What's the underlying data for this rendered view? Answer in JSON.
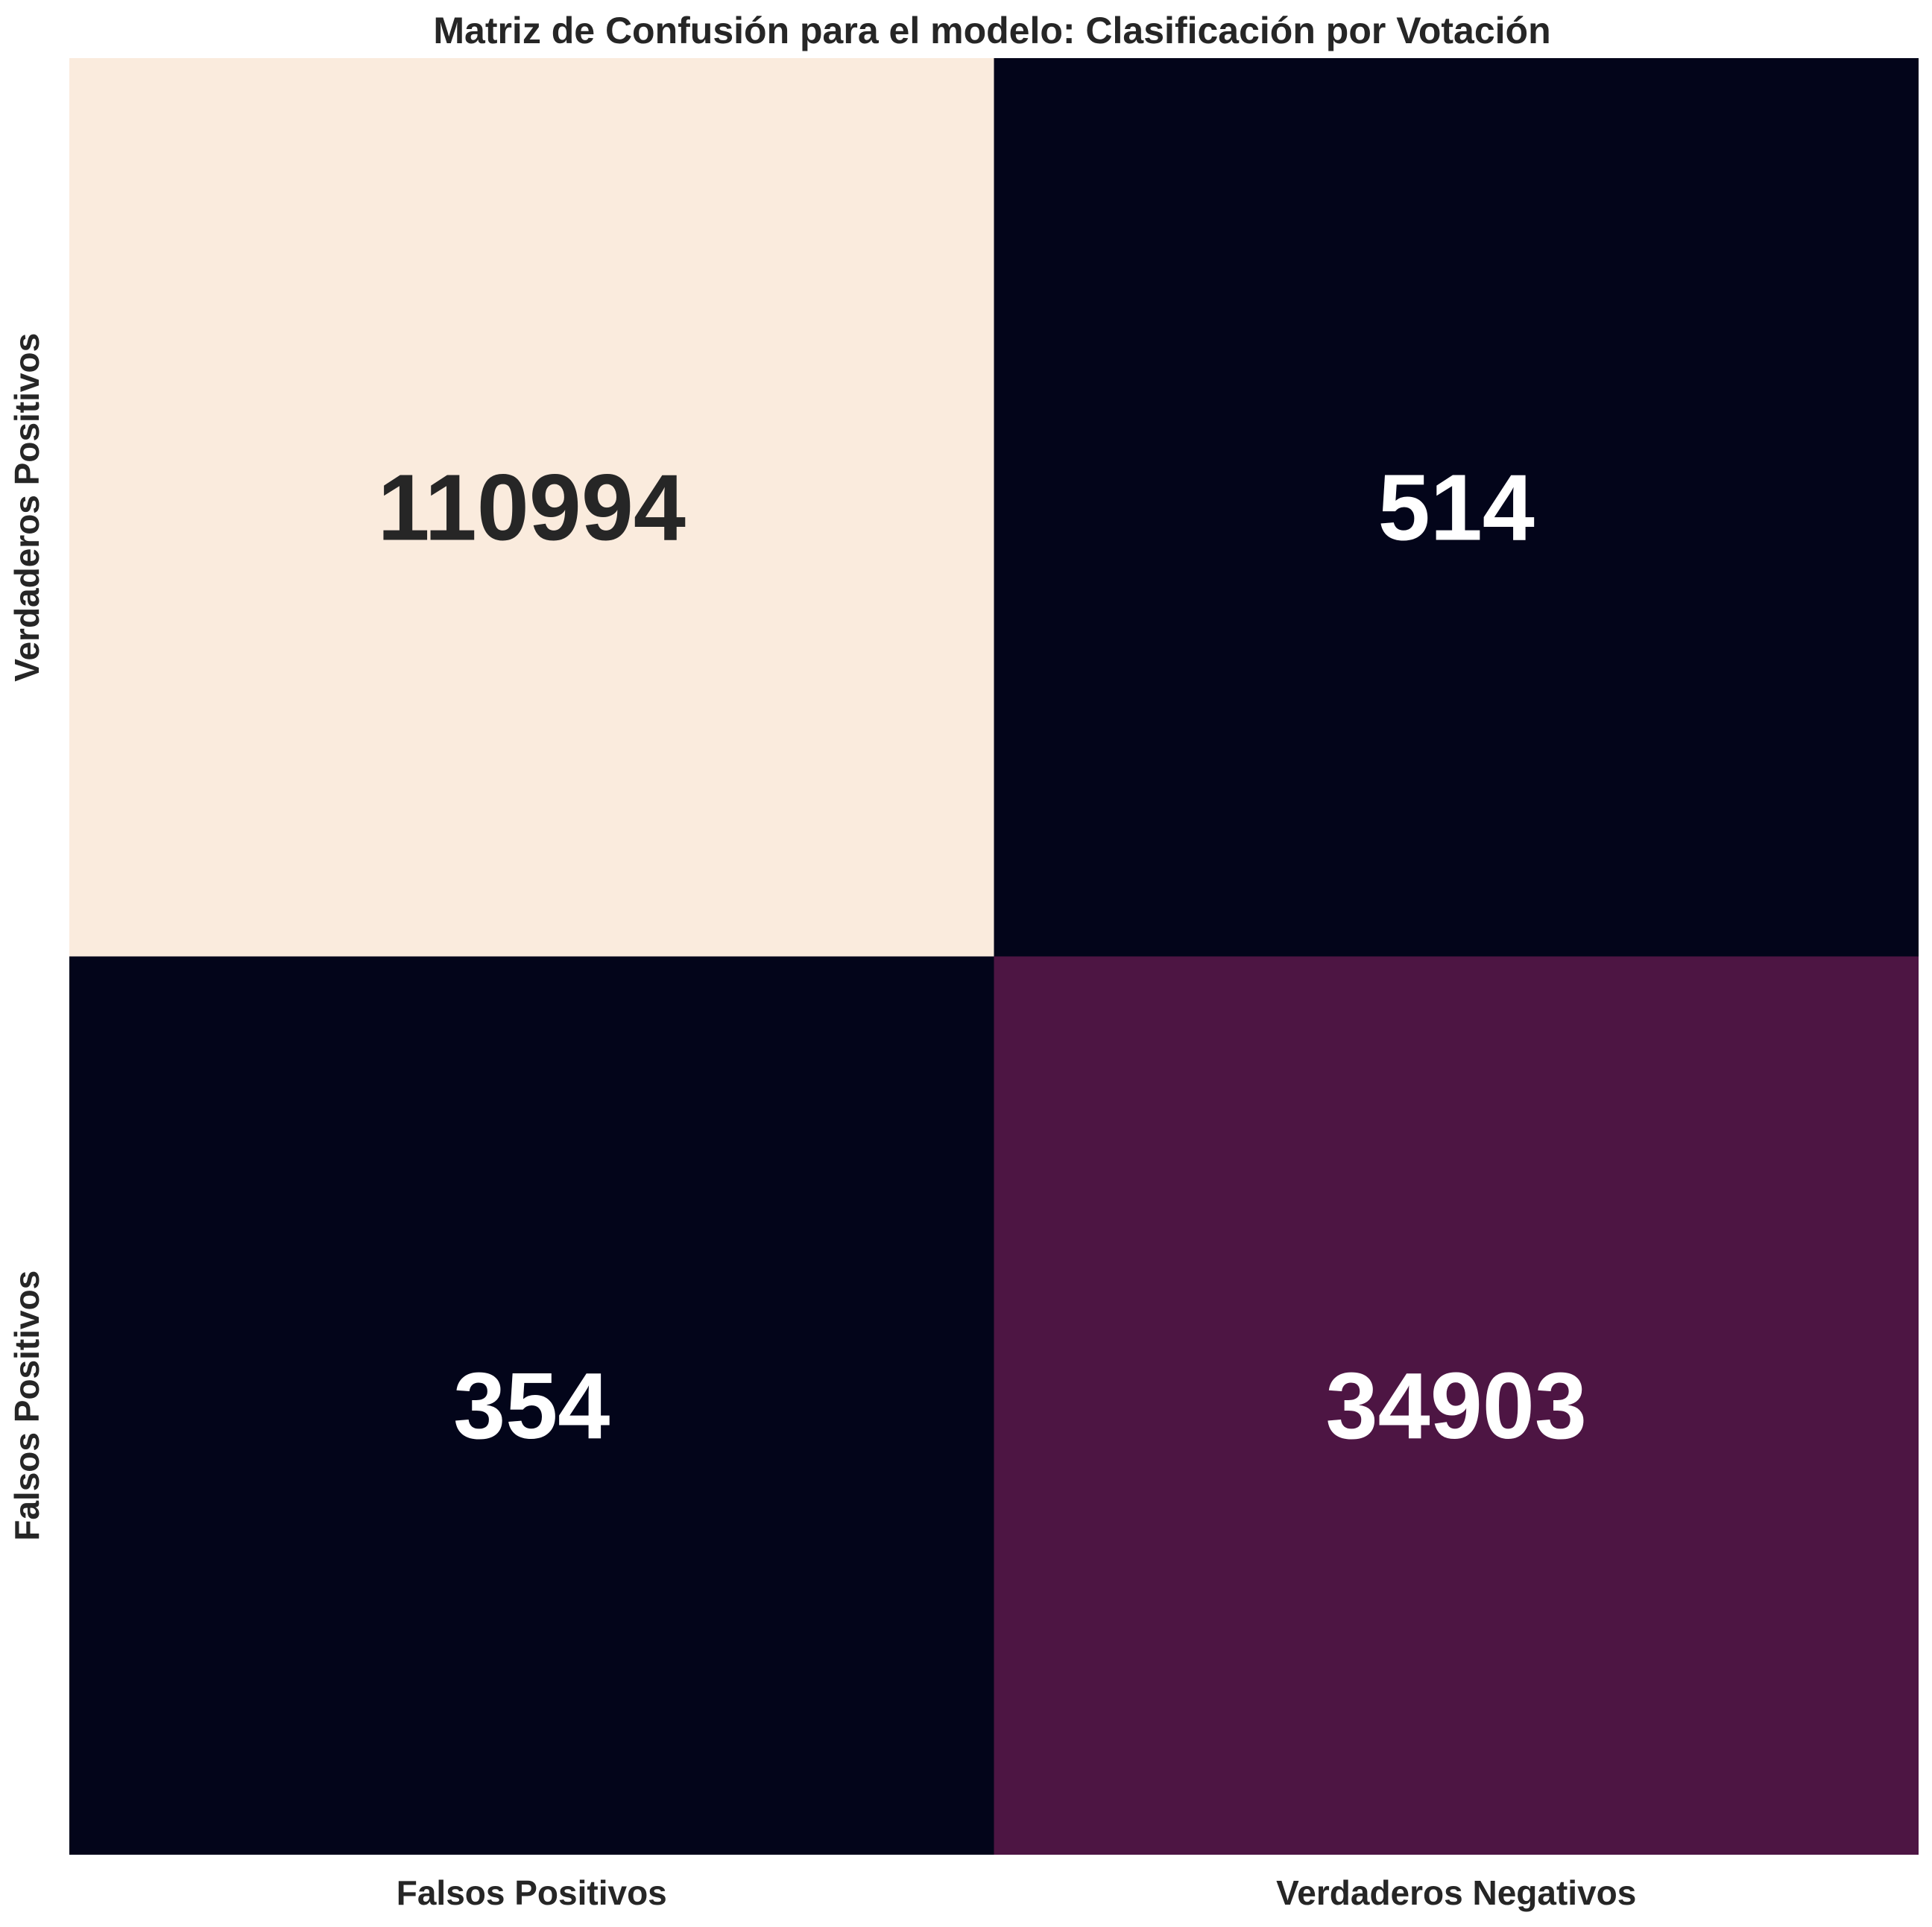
{
  "chart_data": {
    "type": "heatmap",
    "title": "Matriz de Confusión para el modelo: Clasificación por Votación",
    "xlabel": "",
    "ylabel": "",
    "x_categories": [
      "Falsos Positivos",
      "Verdaderos Negativos"
    ],
    "y_categories": [
      "Verdaderos Positivos",
      "Falsos Positivos"
    ],
    "values": [
      [
        110994,
        514
      ],
      [
        354,
        34903
      ]
    ],
    "colormap": [
      "#03051a",
      "#7a1f5b",
      "#faebdd"
    ],
    "colorbar": false,
    "grid": false
  }
}
